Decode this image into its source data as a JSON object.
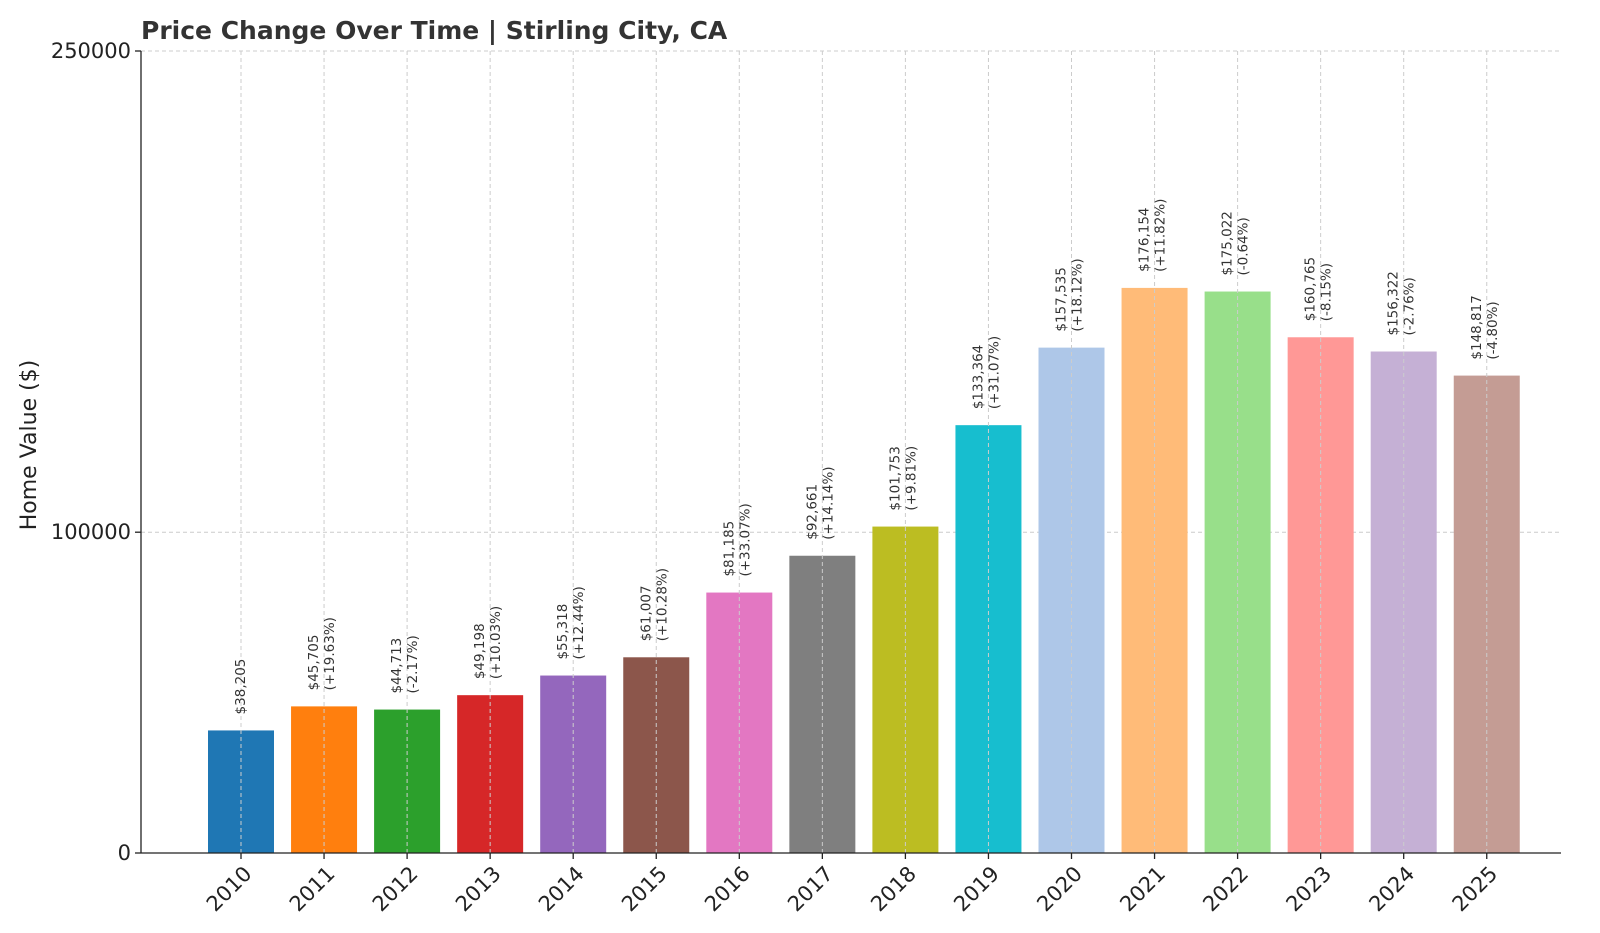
{
  "chart_data": {
    "type": "bar",
    "title": "Price Change Over Time | Stirling City, CA",
    "xlabel": "",
    "ylabel": "Home Value ($)",
    "ylim": [
      0,
      250000
    ],
    "y_ticks": [
      0,
      100000,
      250000
    ],
    "y_tick_labels": [
      "0",
      "100000",
      "250000"
    ],
    "grid": true,
    "categories": [
      "2010",
      "2011",
      "2012",
      "2013",
      "2014",
      "2015",
      "2016",
      "2017",
      "2018",
      "2019",
      "2020",
      "2021",
      "2022",
      "2023",
      "2024",
      "2025"
    ],
    "values": [
      38205,
      45705,
      44713,
      49198,
      55318,
      61007,
      81185,
      92661,
      101753,
      133364,
      157535,
      176154,
      175022,
      160765,
      156322,
      148817
    ],
    "value_labels": [
      "$38,205",
      "$45,705",
      "$44,713",
      "$49,198",
      "$55,318",
      "$61,007",
      "$81,185",
      "$92,661",
      "$101,753",
      "$133,364",
      "$157,535",
      "$176,154",
      "$175,022",
      "$160,765",
      "$156,322",
      "$148,817"
    ],
    "change_labels": [
      "",
      "(+19.63%)",
      "(-2.17%)",
      "(+10.03%)",
      "(+12.44%)",
      "(+10.28%)",
      "(+33.07%)",
      "(+14.14%)",
      "(+9.81%)",
      "(+31.07%)",
      "(+18.12%)",
      "(+11.82%)",
      "(-0.64%)",
      "(-8.15%)",
      "(-2.76%)",
      "(-4.80%)"
    ],
    "colors": [
      "#1f77b4",
      "#ff7f0e",
      "#2ca02c",
      "#d62728",
      "#9467bd",
      "#8c564b",
      "#e377c2",
      "#7f7f7f",
      "#bcbd22",
      "#17becf",
      "#aec7e8",
      "#ffbb78",
      "#98df8a",
      "#ff9896",
      "#c5b0d5",
      "#c49c94"
    ]
  }
}
